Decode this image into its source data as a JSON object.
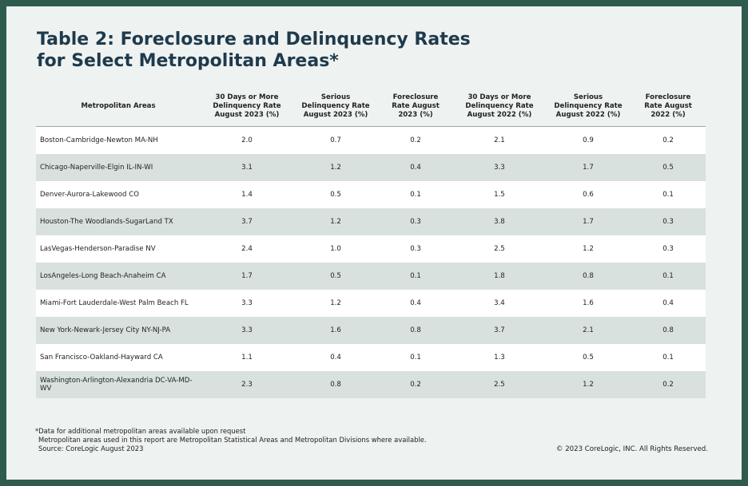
{
  "header": {
    "title_line1": "Table 2: Foreclosure and Delinquency Rates",
    "title_line2": "for Select Metropolitan Areas*"
  },
  "table": {
    "columns": [
      "Metropolitan Areas",
      "30 Days or More Delinquency Rate August 2023 (%)",
      "Serious Delinquency Rate August 2023 (%)",
      "Foreclosure Rate August 2023 (%)",
      "30 Days or More Delinquency Rate August 2022 (%)",
      "Serious Delinquency Rate August 2022 (%)",
      "Foreclosure Rate August 2022 (%)"
    ],
    "rows": [
      [
        "Boston-Cambridge-Newton MA-NH",
        "2.0",
        "0.7",
        "0.2",
        "2.1",
        "0.9",
        "0.2"
      ],
      [
        "Chicago-Naperville-Elgin IL-IN-WI",
        "3.1",
        "1.2",
        "0.4",
        "3.3",
        "1.7",
        "0.5"
      ],
      [
        "Denver-Aurora-Lakewood CO",
        "1.4",
        "0.5",
        "0.1",
        "1.5",
        "0.6",
        "0.1"
      ],
      [
        "Houston-The Woodlands-SugarLand TX",
        "3.7",
        "1.2",
        "0.3",
        "3.8",
        "1.7",
        "0.3"
      ],
      [
        "LasVegas-Henderson-Paradise NV",
        "2.4",
        "1.0",
        "0.3",
        "2.5",
        "1.2",
        "0.3"
      ],
      [
        "LosAngeles-Long Beach-Anaheim CA",
        "1.7",
        "0.5",
        "0.1",
        "1.8",
        "0.8",
        "0.1"
      ],
      [
        "Miami-Fort Lauderdale-West Palm Beach FL",
        "3.3",
        "1.2",
        "0.4",
        "3.4",
        "1.6",
        "0.4"
      ],
      [
        "New York-Newark-Jersey City NY-NJ-PA",
        "3.3",
        "1.6",
        "0.8",
        "3.7",
        "2.1",
        "0.8"
      ],
      [
        "San Francisco-Oakland-Hayward CA",
        "1.1",
        "0.4",
        "0.1",
        "1.3",
        "0.5",
        "0.1"
      ],
      [
        "Washington-Arlington-Alexandria DC-VA-MD-WV",
        "2.3",
        "0.8",
        "0.2",
        "2.5",
        "1.2",
        "0.2"
      ]
    ]
  },
  "footer": {
    "notes": [
      "*Data for additional metropolitan areas available upon request",
      "Metropolitan areas used in this report are Metropolitan Statistical Areas and Metropolitan Divisions where available.",
      "Source: CoreLogic August 2023"
    ],
    "copyright": "© 2023 CoreLogic, INC. All Rights Reserved."
  }
}
